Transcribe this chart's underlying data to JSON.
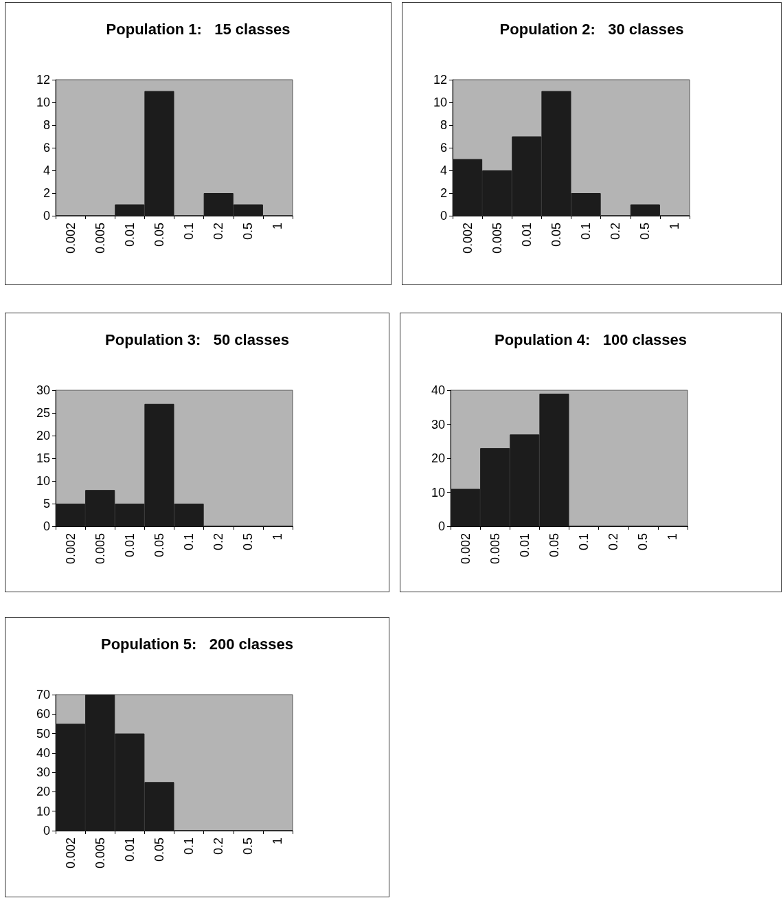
{
  "chart_data": [
    {
      "type": "bar",
      "title": "Population 1:   15 classes",
      "categories": [
        "0.002",
        "0.005",
        "0.01",
        "0.05",
        "0.1",
        "0.2",
        "0.5",
        "1"
      ],
      "values": [
        0,
        0,
        1,
        11,
        0,
        2,
        1,
        0
      ],
      "color": "#1c1c1c",
      "ylim": [
        0,
        12
      ],
      "yticks": [
        0,
        2,
        4,
        6,
        8,
        10,
        12
      ],
      "grid": false
    },
    {
      "type": "bar",
      "title": "Population 2:   30 classes",
      "categories": [
        "0.002",
        "0.005",
        "0.01",
        "0.05",
        "0.1",
        "0.2",
        "0.5",
        "1"
      ],
      "values": [
        5,
        4,
        7,
        11,
        2,
        0,
        1,
        0
      ],
      "color": "#1c1c1c",
      "ylim": [
        0,
        12
      ],
      "yticks": [
        0,
        2,
        4,
        6,
        8,
        10,
        12
      ],
      "grid": false
    },
    {
      "type": "bar",
      "title": "Population 3:   50 classes",
      "categories": [
        "0.002",
        "0.005",
        "0.01",
        "0.05",
        "0.1",
        "0.2",
        "0.5",
        "1"
      ],
      "values": [
        5,
        8,
        5,
        27,
        5,
        0,
        0,
        0
      ],
      "color": "#1c1c1c",
      "ylim": [
        0,
        30
      ],
      "yticks": [
        0,
        5,
        10,
        15,
        20,
        25,
        30
      ],
      "grid": false
    },
    {
      "type": "bar",
      "title": "Population 4:   100 classes",
      "categories": [
        "0.002",
        "0.005",
        "0.01",
        "0.05",
        "0.1",
        "0.2",
        "0.5",
        "1"
      ],
      "values": [
        11,
        23,
        27,
        39,
        0,
        0,
        0,
        0
      ],
      "color": "#1c1c1c",
      "ylim": [
        0,
        40
      ],
      "yticks": [
        0,
        10,
        20,
        30,
        40
      ],
      "grid": false
    },
    {
      "type": "bar",
      "title": "Population 5:   200 classes",
      "categories": [
        "0.002",
        "0.005",
        "0.01",
        "0.05",
        "0.1",
        "0.2",
        "0.5",
        "1"
      ],
      "values": [
        55,
        70,
        50,
        25,
        0,
        0,
        0,
        0
      ],
      "color": "#1c1c1c",
      "ylim": [
        0,
        70
      ],
      "yticks": [
        0,
        10,
        20,
        30,
        40,
        50,
        60,
        70
      ],
      "grid": false
    }
  ]
}
